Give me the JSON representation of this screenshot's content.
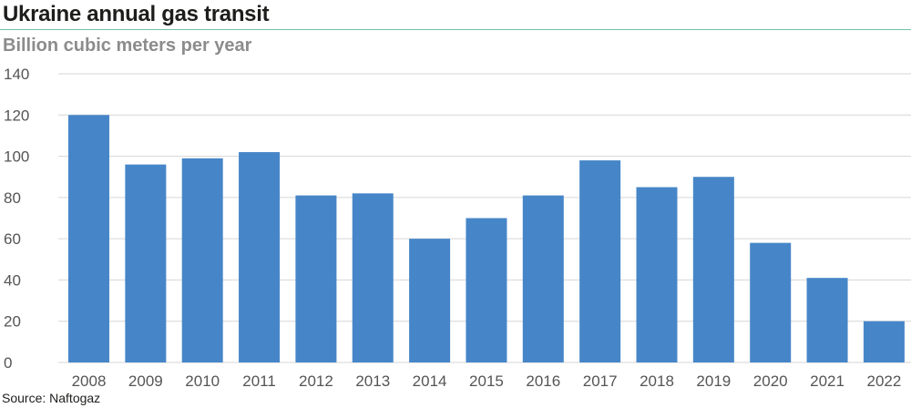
{
  "title": "Ukraine annual gas transit",
  "subtitle": "Billion cubic meters per year",
  "source": "Source: Naftogaz",
  "colors": {
    "bar": "#4686c8",
    "grid": "#d6d6d6",
    "rule": "#6fc3a4",
    "axis_text": "#555555"
  },
  "chart_data": {
    "type": "bar",
    "title": "Ukraine annual gas transit",
    "ylabel": "Billion cubic meters per year",
    "xlabel": "",
    "categories": [
      "2008",
      "2009",
      "2010",
      "2011",
      "2012",
      "2013",
      "2014",
      "2015",
      "2016",
      "2017",
      "2018",
      "2019",
      "2020",
      "2021",
      "2022"
    ],
    "values": [
      120,
      96,
      99,
      102,
      81,
      82,
      60,
      70,
      81,
      98,
      85,
      90,
      58,
      41,
      20
    ],
    "ylim": [
      0,
      140
    ],
    "yticks": [
      0,
      20,
      40,
      60,
      80,
      100,
      120,
      140
    ],
    "grid": true,
    "legend": "none"
  }
}
